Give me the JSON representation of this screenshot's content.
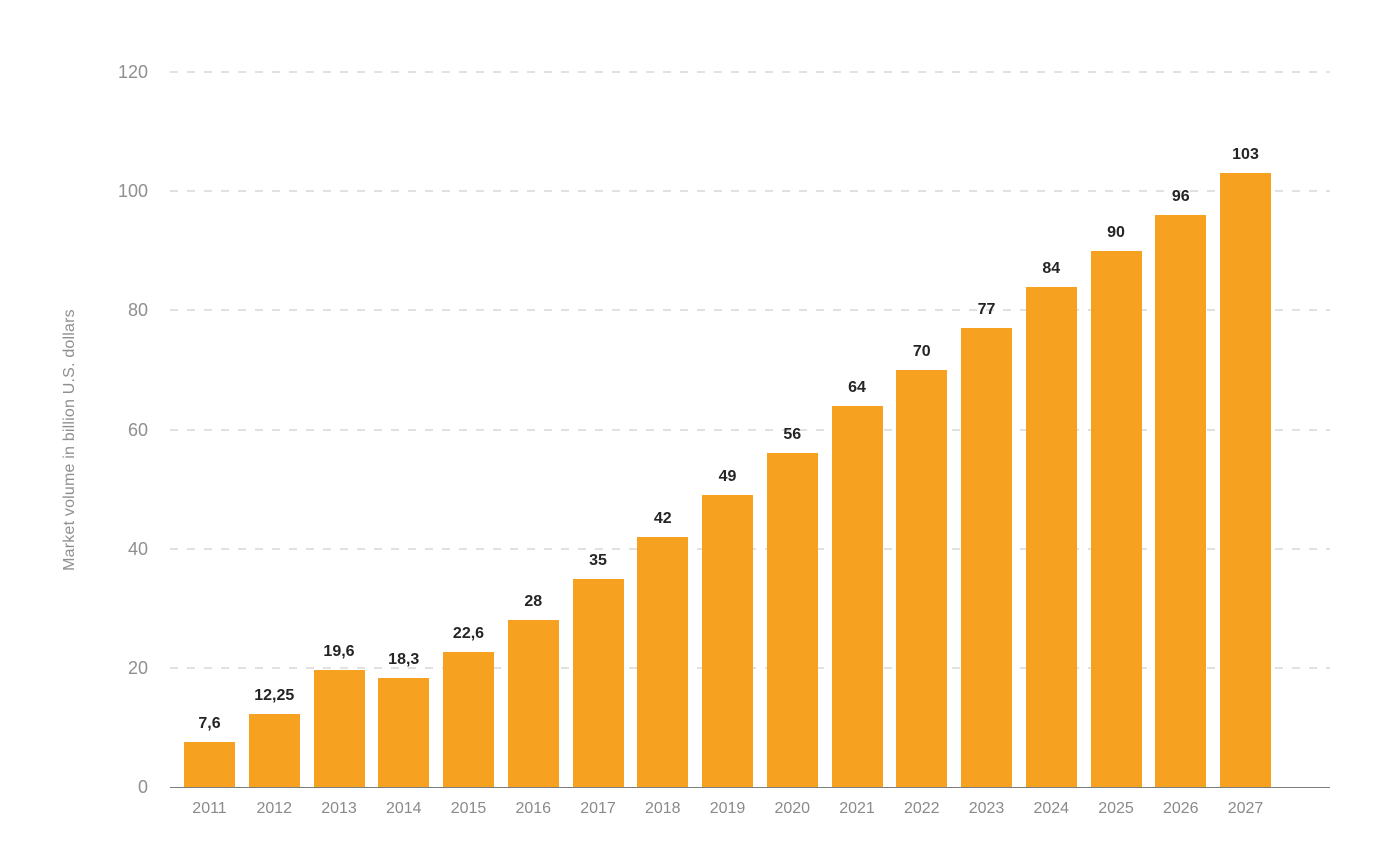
{
  "chart_data": {
    "type": "bar",
    "title": "",
    "xlabel": "",
    "ylabel": "Market volume in billion U.S. dollars",
    "categories": [
      "2011",
      "2012",
      "2013",
      "2014",
      "2015",
      "2016",
      "2017",
      "2018",
      "2019",
      "2020",
      "2021",
      "2022",
      "2023",
      "2024",
      "2025",
      "2026",
      "2027"
    ],
    "values": [
      7.6,
      12.25,
      19.6,
      18.3,
      22.6,
      28,
      35,
      42,
      49,
      56,
      64,
      70,
      77,
      84,
      90,
      96,
      103
    ],
    "value_labels": [
      "7,6",
      "12,25",
      "19,6",
      "18,3",
      "22,6",
      "28",
      "35",
      "42",
      "49",
      "56",
      "64",
      "70",
      "77",
      "84",
      "90",
      "96",
      "103"
    ],
    "yticks": [
      0,
      20,
      40,
      60,
      80,
      100,
      120
    ],
    "ylim": [
      0,
      120
    ],
    "grid": "horizontal-dashed",
    "legend": "none",
    "colors": {
      "bar": "#f6a120",
      "value_label": "#252525",
      "axis_text": "#8f8f8f",
      "gridline": "#e1e1e1",
      "axis_line": "#7d7d7d",
      "background": "#ffffff"
    }
  }
}
